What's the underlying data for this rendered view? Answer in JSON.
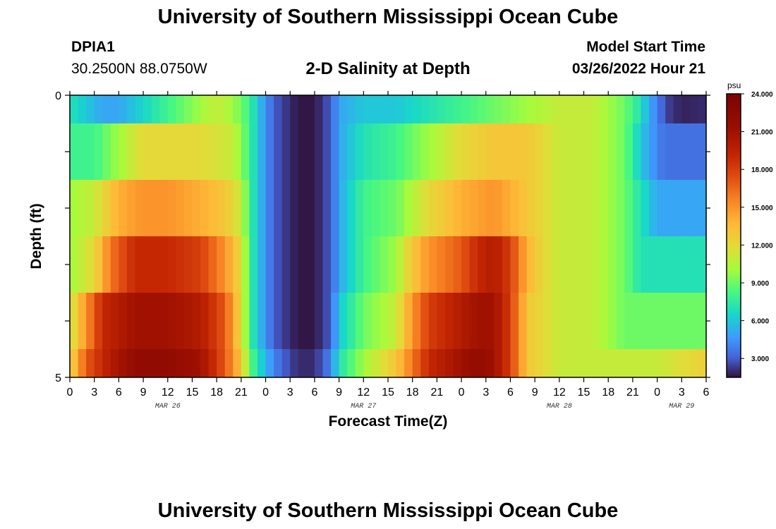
{
  "header": {
    "title": "University of Southern Mississippi Ocean Cube",
    "station_id": "DPIA1",
    "station_coords": "30.2500N  88.0750W",
    "plot_title": "2-D Salinity at Depth",
    "model_start_label": "Model Start Time",
    "model_start_value": "03/26/2022 Hour 21"
  },
  "footer": {
    "title": "University of Southern Mississippi Ocean Cube"
  },
  "chart_data": {
    "type": "heatmap",
    "title": "2-D Salinity at Depth",
    "xlabel": "Forecast Time(Z)",
    "ylabel": "Depth (ft)",
    "y_ticks": [
      "0",
      "5"
    ],
    "ylim": [
      0,
      5
    ],
    "x_tick_labels": [
      "0",
      "3",
      "6",
      "9",
      "12",
      "15",
      "18",
      "21",
      "0",
      "3",
      "6",
      "9",
      "12",
      "15",
      "18",
      "21",
      "0",
      "3",
      "6",
      "9",
      "12",
      "15",
      "18",
      "21",
      "0",
      "3",
      "6"
    ],
    "date_labels": [
      "MAR 26",
      "MAR 27",
      "MAR 28",
      "MAR 29"
    ],
    "colorbar": {
      "unit": "psu",
      "range": [
        1.5,
        24.0
      ],
      "tick_labels": [
        "24.000",
        "21.000",
        "18.000",
        "15.000",
        "12.000",
        "9.000",
        "6.000",
        "3.000"
      ],
      "tick_values": [
        24,
        21,
        18,
        15,
        12,
        9,
        6,
        3
      ]
    },
    "hours": [
      0,
      78
    ],
    "depth_layers": [
      {
        "depth_range": [
          0,
          0.5
        ],
        "keyframes": [
          [
            0,
            7
          ],
          [
            2,
            6
          ],
          [
            4,
            5
          ],
          [
            6,
            5
          ],
          [
            8,
            6
          ],
          [
            10,
            7
          ],
          [
            12,
            8
          ],
          [
            14,
            9
          ],
          [
            16,
            10
          ],
          [
            18,
            11
          ],
          [
            20,
            10
          ],
          [
            22,
            8
          ],
          [
            23,
            6
          ],
          [
            25,
            3
          ],
          [
            27,
            2
          ],
          [
            28,
            1.6
          ],
          [
            30,
            1.6
          ],
          [
            32,
            3
          ],
          [
            33,
            5
          ],
          [
            36,
            6
          ],
          [
            40,
            6
          ],
          [
            44,
            7
          ],
          [
            48,
            8
          ],
          [
            52,
            9
          ],
          [
            56,
            10
          ],
          [
            60,
            11
          ],
          [
            64,
            11
          ],
          [
            66,
            10
          ],
          [
            68,
            9
          ],
          [
            70,
            7
          ],
          [
            71,
            5
          ],
          [
            72,
            4
          ],
          [
            73,
            2.5
          ],
          [
            75,
            1.8
          ],
          [
            78,
            2
          ]
        ]
      },
      {
        "depth_range": [
          0.5,
          1.5
        ],
        "keyframes": [
          [
            0,
            8
          ],
          [
            3,
            8
          ],
          [
            6,
            10
          ],
          [
            9,
            12
          ],
          [
            12,
            12
          ],
          [
            16,
            12
          ],
          [
            20,
            11
          ],
          [
            22,
            8
          ],
          [
            23,
            6
          ],
          [
            25,
            3
          ],
          [
            27,
            2
          ],
          [
            28,
            1.6
          ],
          [
            30,
            1.6
          ],
          [
            32,
            3
          ],
          [
            33,
            5
          ],
          [
            36,
            7
          ],
          [
            40,
            8
          ],
          [
            44,
            10
          ],
          [
            48,
            12
          ],
          [
            52,
            13
          ],
          [
            56,
            13
          ],
          [
            58,
            12
          ],
          [
            60,
            11
          ],
          [
            64,
            11
          ],
          [
            66,
            10
          ],
          [
            68,
            9
          ],
          [
            70,
            6
          ],
          [
            72,
            4
          ],
          [
            73,
            3.5
          ],
          [
            78,
            3.5
          ]
        ]
      },
      {
        "depth_range": [
          1.5,
          2.5
        ],
        "keyframes": [
          [
            0,
            10
          ],
          [
            3,
            11
          ],
          [
            6,
            14
          ],
          [
            9,
            15
          ],
          [
            12,
            15
          ],
          [
            16,
            14
          ],
          [
            19,
            13
          ],
          [
            21,
            11
          ],
          [
            22,
            8
          ],
          [
            23,
            6
          ],
          [
            25,
            3
          ],
          [
            27,
            2
          ],
          [
            28,
            1.6
          ],
          [
            30,
            1.6
          ],
          [
            32,
            3
          ],
          [
            33,
            5
          ],
          [
            36,
            8
          ],
          [
            40,
            9
          ],
          [
            44,
            12
          ],
          [
            48,
            14
          ],
          [
            52,
            15
          ],
          [
            54,
            14
          ],
          [
            56,
            13
          ],
          [
            58,
            12
          ],
          [
            60,
            11
          ],
          [
            64,
            11
          ],
          [
            66,
            10
          ],
          [
            68,
            9
          ],
          [
            70,
            7
          ],
          [
            72,
            5
          ],
          [
            73,
            5
          ],
          [
            78,
            5
          ]
        ]
      },
      {
        "depth_range": [
          2.5,
          3.5
        ],
        "keyframes": [
          [
            0,
            10
          ],
          [
            3,
            12
          ],
          [
            5,
            16
          ],
          [
            8,
            19
          ],
          [
            12,
            19
          ],
          [
            16,
            18
          ],
          [
            19,
            15
          ],
          [
            21,
            12
          ],
          [
            22,
            8
          ],
          [
            23,
            6
          ],
          [
            25,
            3
          ],
          [
            27,
            2
          ],
          [
            28,
            1.6
          ],
          [
            30,
            1.6
          ],
          [
            32,
            3
          ],
          [
            33,
            5
          ],
          [
            36,
            8
          ],
          [
            40,
            10
          ],
          [
            42,
            13
          ],
          [
            44,
            15
          ],
          [
            48,
            17
          ],
          [
            50,
            19
          ],
          [
            52,
            20
          ],
          [
            54,
            18
          ],
          [
            56,
            14
          ],
          [
            58,
            12
          ],
          [
            60,
            11
          ],
          [
            64,
            11
          ],
          [
            66,
            10
          ],
          [
            68,
            9
          ],
          [
            70,
            7
          ],
          [
            72,
            7
          ],
          [
            78,
            7
          ]
        ]
      },
      {
        "depth_range": [
          3.5,
          4.5
        ],
        "keyframes": [
          [
            0,
            11
          ],
          [
            2,
            15
          ],
          [
            4,
            19
          ],
          [
            8,
            21
          ],
          [
            12,
            21
          ],
          [
            16,
            20
          ],
          [
            19,
            17
          ],
          [
            21,
            12
          ],
          [
            22,
            8
          ],
          [
            23,
            6
          ],
          [
            25,
            3
          ],
          [
            27,
            2
          ],
          [
            28,
            1.6
          ],
          [
            30,
            1.6
          ],
          [
            32,
            3
          ],
          [
            33,
            6
          ],
          [
            36,
            9
          ],
          [
            40,
            11
          ],
          [
            42,
            15
          ],
          [
            44,
            18
          ],
          [
            48,
            20
          ],
          [
            50,
            21
          ],
          [
            52,
            21
          ],
          [
            54,
            18
          ],
          [
            56,
            13
          ],
          [
            58,
            12
          ],
          [
            60,
            11
          ],
          [
            64,
            11
          ],
          [
            66,
            10
          ],
          [
            68,
            9
          ],
          [
            70,
            9
          ],
          [
            72,
            9
          ],
          [
            78,
            9
          ]
        ]
      },
      {
        "depth_range": [
          4.5,
          5.0
        ],
        "keyframes": [
          [
            0,
            12
          ],
          [
            2,
            17
          ],
          [
            5,
            20
          ],
          [
            8,
            22
          ],
          [
            12,
            22
          ],
          [
            16,
            21
          ],
          [
            19,
            17
          ],
          [
            21,
            13
          ],
          [
            22,
            9
          ],
          [
            23,
            7
          ],
          [
            25,
            4
          ],
          [
            27,
            2.5
          ],
          [
            28,
            2
          ],
          [
            30,
            2
          ],
          [
            32,
            4
          ],
          [
            33,
            7
          ],
          [
            36,
            10
          ],
          [
            40,
            13
          ],
          [
            42,
            16
          ],
          [
            44,
            19
          ],
          [
            48,
            21
          ],
          [
            50,
            22
          ],
          [
            52,
            21
          ],
          [
            54,
            18
          ],
          [
            56,
            13
          ],
          [
            58,
            12
          ],
          [
            60,
            11
          ],
          [
            64,
            11
          ],
          [
            66,
            11
          ],
          [
            68,
            11
          ],
          [
            70,
            11
          ],
          [
            72,
            11
          ],
          [
            76,
            12
          ],
          [
            78,
            12.5
          ]
        ]
      }
    ]
  }
}
